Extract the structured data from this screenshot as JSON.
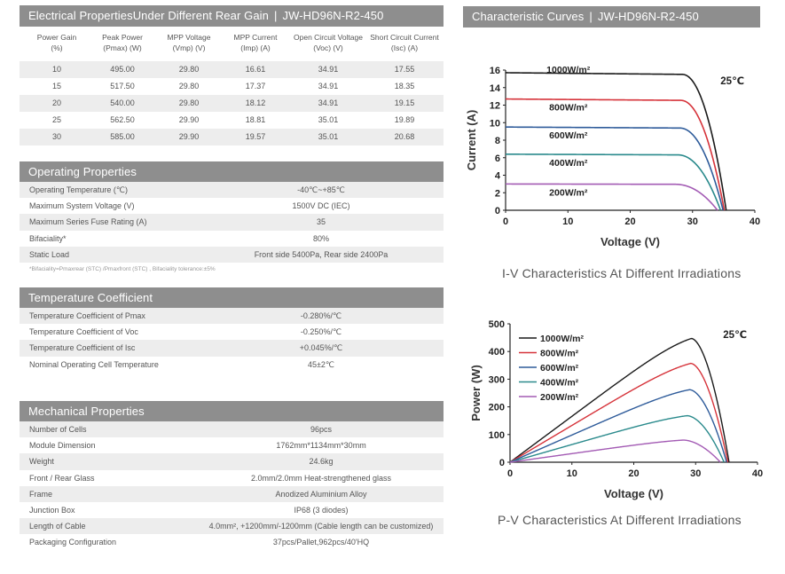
{
  "electrical": {
    "title": "Electrical PropertiesUnder Different Rear Gain",
    "model": "JW-HD96N-R2-450",
    "columns": [
      {
        "line1": "Power Gain",
        "line2": "(%)"
      },
      {
        "line1": "Peak Power",
        "line2": "(Pmax) (W)"
      },
      {
        "line1": "MPP Voltage",
        "line2": "(Vmp) (V)"
      },
      {
        "line1": "MPP Current",
        "line2": "(Imp) (A)"
      },
      {
        "line1": "Open Circuit Voltage",
        "line2": "(Voc) (V)"
      },
      {
        "line1": "Short Circuit Current",
        "line2": "(Isc) (A)"
      }
    ],
    "rows": [
      [
        "10",
        "495.00",
        "29.80",
        "16.61",
        "34.91",
        "17.55"
      ],
      [
        "15",
        "517.50",
        "29.80",
        "17.37",
        "34.91",
        "18.35"
      ],
      [
        "20",
        "540.00",
        "29.80",
        "18.12",
        "34.91",
        "19.15"
      ],
      [
        "25",
        "562.50",
        "29.90",
        "18.81",
        "35.01",
        "19.89"
      ],
      [
        "30",
        "585.00",
        "29.90",
        "19.57",
        "35.01",
        "20.68"
      ]
    ]
  },
  "operating": {
    "title": "Operating Properties",
    "rows": [
      {
        "label": "Operating Temperature (℃)",
        "value": "-40℃~+85℃"
      },
      {
        "label": "Maximum System Voltage (V)",
        "value": "1500V DC (IEC)"
      },
      {
        "label": "Maximum Series Fuse Rating (A)",
        "value": "35"
      },
      {
        "label": "Bifaciality*",
        "value": "80%"
      },
      {
        "label": "Static Load",
        "value": "Front side 5400Pa, Rear side 2400Pa"
      }
    ],
    "note": "*Bifaciality=Pmaxrear (STC) /Pmaxfront (STC) , Bifaciality tolerance:±5%"
  },
  "temperature": {
    "title": "Temperature Coefficient",
    "rows": [
      {
        "label": "Temperature Coefficient of Pmax",
        "value": "-0.280%/℃"
      },
      {
        "label": "Temperature Coefficient of Voc",
        "value": "-0.250%/℃"
      },
      {
        "label": "Temperature Coefficient of Isc",
        "value": "+0.045%/℃"
      },
      {
        "label": "Nominal Operating Cell Temperature",
        "value": "45±2℃"
      }
    ]
  },
  "mechanical": {
    "title": "Mechanical Properties",
    "rows": [
      {
        "label": "Number of Cells",
        "value": "96pcs"
      },
      {
        "label": "Module Dimension",
        "value": "1762mm*1134mm*30mm"
      },
      {
        "label": "Weight",
        "value": "24.6kg"
      },
      {
        "label": "Front / Rear Glass",
        "value": "2.0mm/2.0mm Heat-strengthened glass"
      },
      {
        "label": "Frame",
        "value": "Anodized Aluminium Alloy"
      },
      {
        "label": "Junction Box",
        "value": "IP68 (3 diodes)"
      },
      {
        "label": "Length of Cable",
        "value": "4.0mm², +1200mm/-1200mm (Cable length can be customized)"
      },
      {
        "label": "Packaging Configuration",
        "value": "37pcs/Pallet,962pcs/40'HQ"
      }
    ]
  },
  "curves": {
    "title": "Characteristic Curves",
    "model": "JW-HD96N-R2-450"
  },
  "chart_data": [
    {
      "type": "line",
      "xlabel": "Voltage (V)",
      "ylabel": "Current (A)",
      "caption": "I-V Characteristics At Different Irradiations",
      "xlim": [
        0,
        40
      ],
      "ylim": [
        0,
        16
      ],
      "xticks": [
        0,
        10,
        20,
        30,
        40
      ],
      "yticks": [
        0,
        2,
        4,
        6,
        8,
        10,
        12,
        14,
        16
      ],
      "annotation": "25℃",
      "series": [
        {
          "name": "1000W/m²",
          "color": "#1a1a1a",
          "isc": 15.7,
          "voc": 35.4
        },
        {
          "name": "800W/m²",
          "color": "#d6333a",
          "isc": 12.7,
          "voc": 35.1
        },
        {
          "name": "600W/m²",
          "color": "#2e5b9a",
          "isc": 9.5,
          "voc": 34.9
        },
        {
          "name": "400W/m²",
          "color": "#2a8a8c",
          "isc": 6.4,
          "voc": 34.5
        },
        {
          "name": "200W/m²",
          "color": "#a35bb4",
          "isc": 3.0,
          "voc": 34.0
        }
      ]
    },
    {
      "type": "line",
      "xlabel": "Voltage (V)",
      "ylabel": "Power (W)",
      "caption": "P-V Characteristics At Different Irradiations",
      "xlim": [
        0,
        40
      ],
      "ylim": [
        0,
        500
      ],
      "xticks": [
        0,
        10,
        20,
        30,
        40
      ],
      "yticks": [
        0,
        100,
        200,
        300,
        400,
        500
      ],
      "annotation": "25℃",
      "legend": "top-left",
      "series": [
        {
          "name": "1000W/m²",
          "color": "#1a1a1a",
          "pmax": 447,
          "vmp": 29.3,
          "voc": 35.4
        },
        {
          "name": "800W/m²",
          "color": "#d6333a",
          "pmax": 357,
          "vmp": 29.2,
          "voc": 35.2
        },
        {
          "name": "600W/m²",
          "color": "#2e5b9a",
          "pmax": 262,
          "vmp": 29.0,
          "voc": 35.0
        },
        {
          "name": "400W/m²",
          "color": "#2a8a8c",
          "pmax": 168,
          "vmp": 28.6,
          "voc": 34.6
        },
        {
          "name": "200W/m²",
          "color": "#a35bb4",
          "pmax": 80,
          "vmp": 28.0,
          "voc": 34.0
        }
      ]
    }
  ]
}
